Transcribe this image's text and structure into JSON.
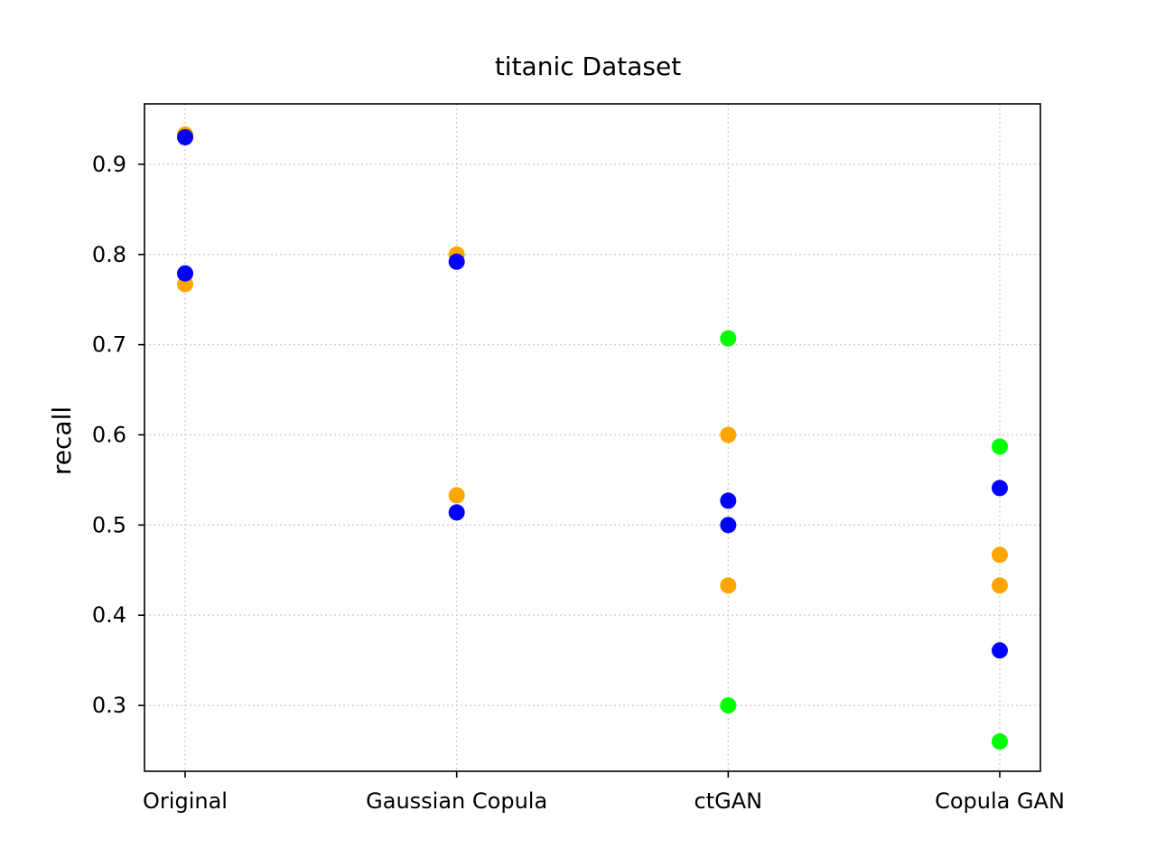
{
  "chart_data": {
    "type": "scatter",
    "title": "titanic Dataset",
    "xlabel": "",
    "ylabel": "recall",
    "categories": [
      "Original",
      "Gaussian Copula",
      "ctGAN",
      "Copula GAN"
    ],
    "ylim": [
      0.227,
      0.967
    ],
    "yticks": [
      0.3,
      0.4,
      0.5,
      0.6,
      0.7,
      0.8,
      0.9
    ],
    "ytick_labels": [
      "0.3",
      "0.4",
      "0.5",
      "0.6",
      "0.7",
      "0.8",
      "0.9"
    ],
    "grid": true,
    "series": [
      {
        "color": "#FFA500",
        "points": [
          {
            "x": "Original",
            "y": 0.933
          },
          {
            "x": "Original",
            "y": 0.767
          },
          {
            "x": "Gaussian Copula",
            "y": 0.8
          },
          {
            "x": "Gaussian Copula",
            "y": 0.533
          },
          {
            "x": "ctGAN",
            "y": 0.6
          },
          {
            "x": "ctGAN",
            "y": 0.433
          },
          {
            "x": "Copula GAN",
            "y": 0.467
          },
          {
            "x": "Copula GAN",
            "y": 0.433
          }
        ]
      },
      {
        "color": "#0000FF",
        "points": [
          {
            "x": "Original",
            "y": 0.93
          },
          {
            "x": "Original",
            "y": 0.779
          },
          {
            "x": "Gaussian Copula",
            "y": 0.792
          },
          {
            "x": "Gaussian Copula",
            "y": 0.514
          },
          {
            "x": "ctGAN",
            "y": 0.527
          },
          {
            "x": "ctGAN",
            "y": 0.5
          },
          {
            "x": "Copula GAN",
            "y": 0.541
          },
          {
            "x": "Copula GAN",
            "y": 0.361
          }
        ]
      },
      {
        "color": "#00FF00",
        "points": [
          {
            "x": "ctGAN",
            "y": 0.707
          },
          {
            "x": "ctGAN",
            "y": 0.3
          },
          {
            "x": "Copula GAN",
            "y": 0.587
          },
          {
            "x": "Copula GAN",
            "y": 0.26
          }
        ]
      }
    ]
  }
}
